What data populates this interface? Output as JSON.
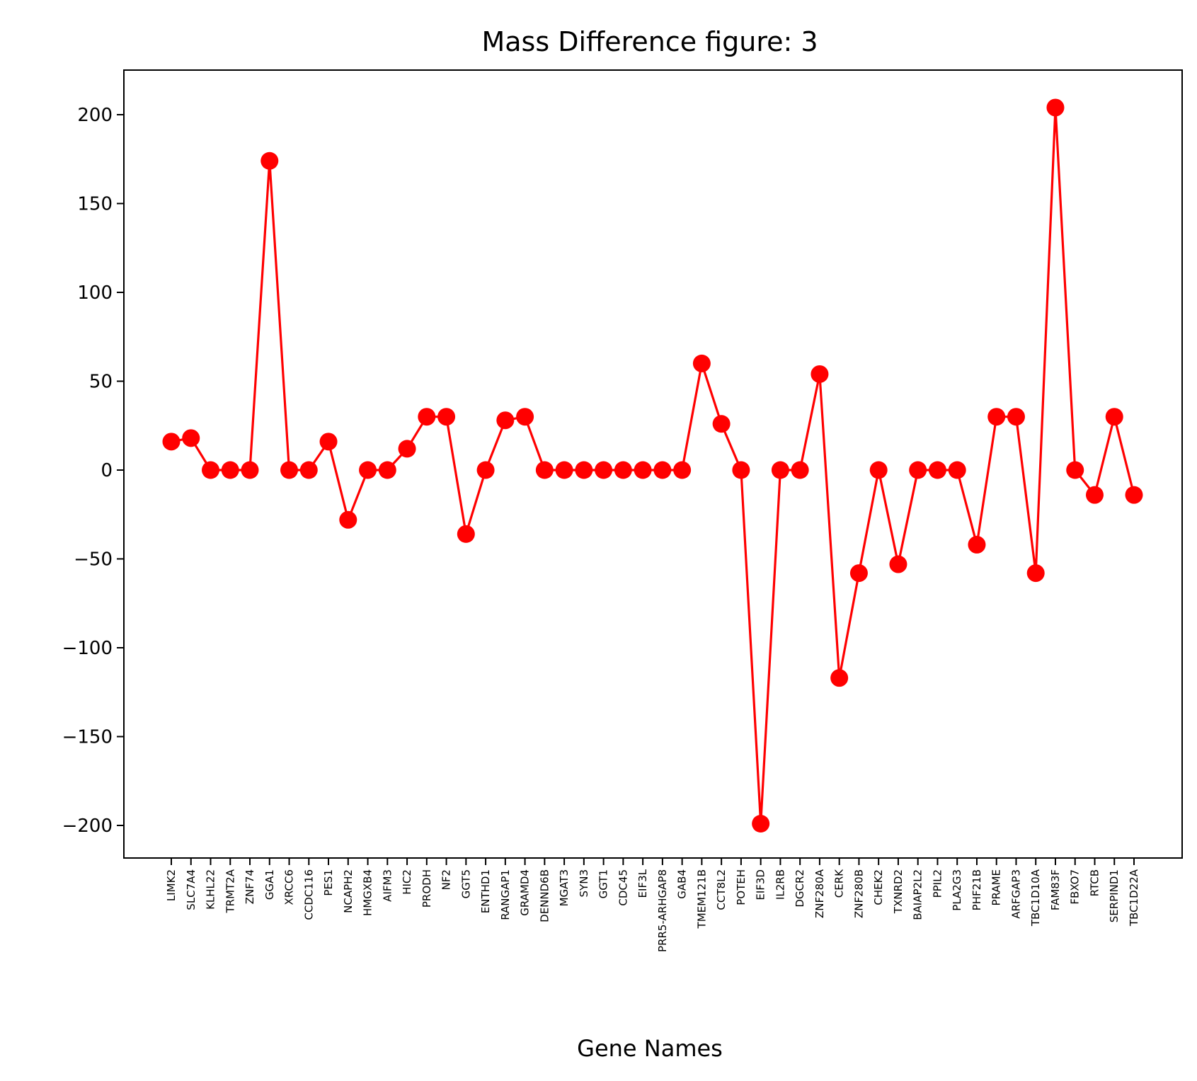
{
  "chart_data": {
    "type": "line",
    "title": "Mass Difference figure: 3",
    "xlabel": "Gene Names",
    "ylabel": "",
    "ylim": [
      -220,
      225
    ],
    "yticks": [
      200,
      150,
      100,
      50,
      0,
      -50,
      -100,
      -150,
      -200
    ],
    "ytick_labels": [
      "200",
      "150",
      "100",
      "50",
      "0",
      "−50",
      "−100",
      "−150",
      "−200"
    ],
    "grid": false,
    "line_color": "#ff0000",
    "marker": "circle",
    "categories": [
      "LIMK2",
      "SLC7A4",
      "KLHL22",
      "TRMT2A",
      "ZNF74",
      "GGA1",
      "XRCC6",
      "CCDC116",
      "PES1",
      "NCAPH2",
      "HMGXB4",
      "AIFM3",
      "HIC2",
      "PRODH",
      "NF2",
      "GGT5",
      "ENTHD1",
      "RANGAP1",
      "GRAMD4",
      "DENND6B",
      "MGAT3",
      "SYN3",
      "GGT1",
      "CDC45",
      "EIF3L",
      "PRR5-ARHGAP8",
      "GAB4",
      "TMEM121B",
      "CCT8L2",
      "POTEH",
      "EIF3D",
      "IL2RB",
      "DGCR2",
      "ZNF280A",
      "CERK",
      "ZNF280B",
      "CHEK2",
      "TXNRD2",
      "BAIAP2L2",
      "PPIL2",
      "PLA2G3",
      "PHF21B",
      "PRAME",
      "ARFGAP3",
      "TBC1D10A",
      "FAM83F",
      "FBXO7",
      "RTCB",
      "SERPIND1",
      "TBC1D22A"
    ],
    "values": [
      16,
      18,
      0,
      0,
      0,
      174,
      0,
      0,
      16,
      -28,
      0,
      0,
      12,
      30,
      30,
      -36,
      0,
      28,
      30,
      0,
      0,
      0,
      0,
      0,
      0,
      0,
      0,
      60,
      26,
      0,
      -199,
      0,
      0,
      54,
      -117,
      -58,
      0,
      -53,
      0,
      0,
      0,
      -42,
      30,
      30,
      -58,
      204,
      0,
      -14,
      30,
      -14
    ]
  }
}
